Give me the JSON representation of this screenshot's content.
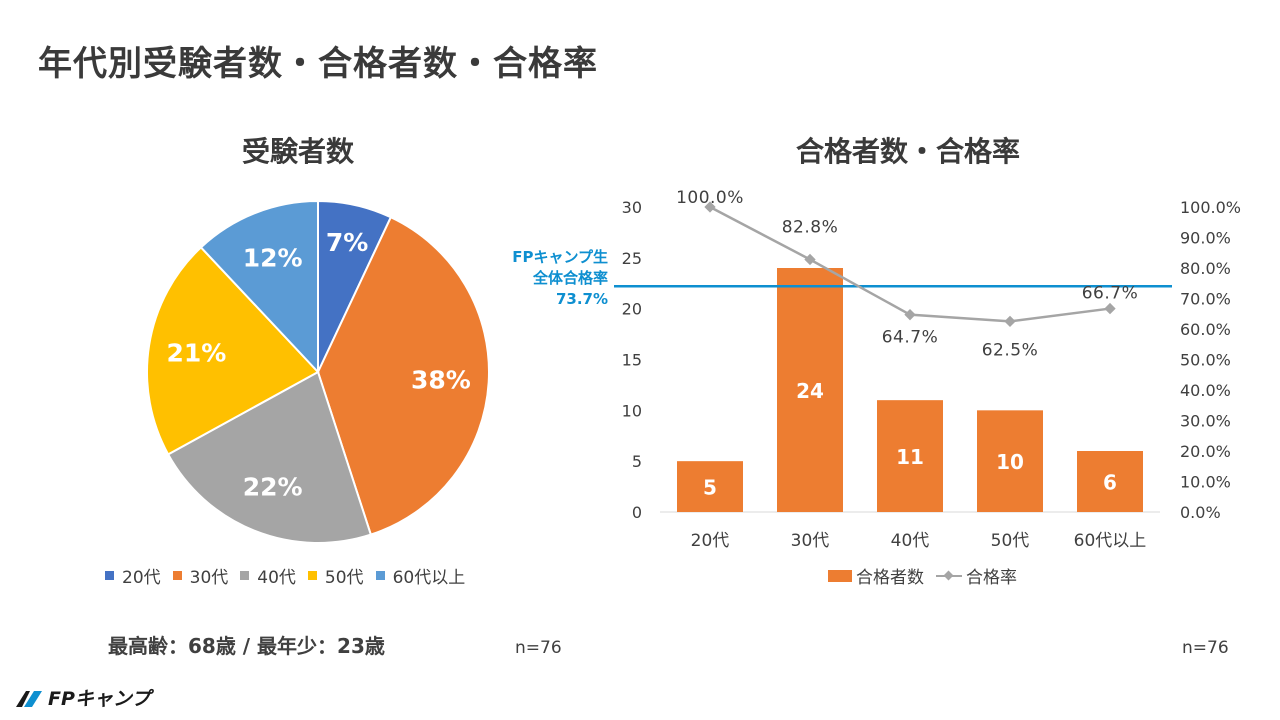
{
  "page_title": "年代別受験者数・合格者数・合格率",
  "pie_title": "受験者数",
  "bar_title": "合格者数・合格率",
  "age_note": "最高齢：68歳 / 最年少：23歳",
  "n_left": "n=76",
  "n_right": "n=76",
  "reference": {
    "line1": "FPキャンプ生",
    "line2": "全体合格率",
    "line3": "73.7%",
    "value": 73.7,
    "color": "#0E8FD0"
  },
  "logo_text": "FPキャンプ",
  "chart_data": [
    {
      "type": "pie",
      "title": "受験者数",
      "categories": [
        "20代",
        "30代",
        "40代",
        "50代",
        "60代以上"
      ],
      "values": [
        7,
        38,
        22,
        21,
        12
      ],
      "labels": [
        "7%",
        "38%",
        "22%",
        "21%",
        "12%"
      ],
      "colors": [
        "#4472C4",
        "#ED7D31",
        "#A5A5A5",
        "#FFC000",
        "#5B9BD5"
      ],
      "legend": "bottom"
    },
    {
      "type": "bar",
      "title": "合格者数・合格率",
      "categories": [
        "20代",
        "30代",
        "40代",
        "50代",
        "60代以上"
      ],
      "series": [
        {
          "name": "合格者数",
          "kind": "bar",
          "axis": "left",
          "values": [
            5,
            24,
            11,
            10,
            6
          ],
          "color": "#ED7D31"
        },
        {
          "name": "合格率",
          "kind": "line",
          "axis": "right",
          "values": [
            100.0,
            82.8,
            64.7,
            62.5,
            66.7
          ],
          "labels": [
            "100.0%",
            "82.8%",
            "64.7%",
            "62.5%",
            "66.7%"
          ],
          "color": "#A5A5A5"
        }
      ],
      "ylim_left": [
        0,
        30
      ],
      "yticks_left": [
        "0",
        "5",
        "10",
        "15",
        "20",
        "25",
        "30"
      ],
      "ylim_right": [
        0,
        100
      ],
      "yticks_right": [
        "0.0%",
        "10.0%",
        "20.0%",
        "30.0%",
        "40.0%",
        "50.0%",
        "60.0%",
        "70.0%",
        "80.0%",
        "90.0%",
        "100.0%"
      ],
      "legend": "bottom"
    }
  ]
}
